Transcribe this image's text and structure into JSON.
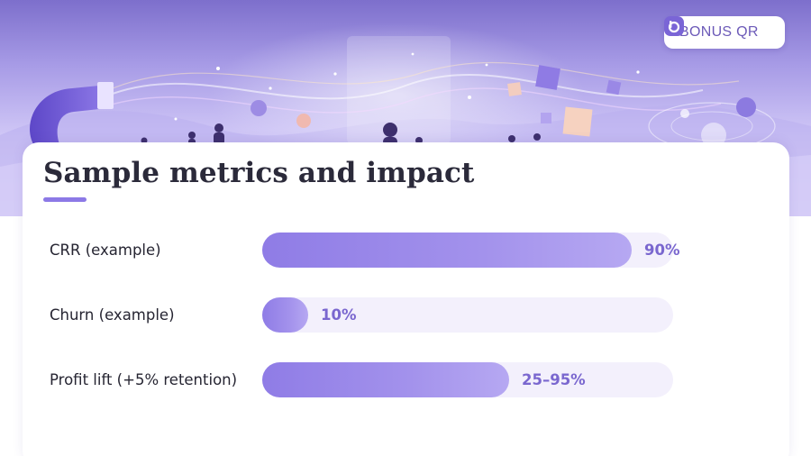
{
  "brand": {
    "label": "BONUS QR",
    "icon": "bonus-qr-logo-icon"
  },
  "card": {
    "title": "Sample metrics and impact"
  },
  "colors": {
    "accent": "#8c79e6",
    "bar_fill_start": "#8f7ce6",
    "bar_fill_end": "#b6a8f2",
    "track": "#f3f0fc",
    "value_text": "#7a67cf"
  },
  "chart_data": {
    "type": "bar",
    "orientation": "horizontal",
    "title": "Sample metrics and impact",
    "categories": [
      "CRR (example)",
      "Churn (example)",
      "Profit lift (+5% retention)"
    ],
    "values": [
      90,
      10,
      60
    ],
    "value_labels": [
      "90%",
      "10%",
      "25–95%"
    ],
    "xlim": [
      0,
      100
    ],
    "grid": false,
    "legend": "none"
  }
}
